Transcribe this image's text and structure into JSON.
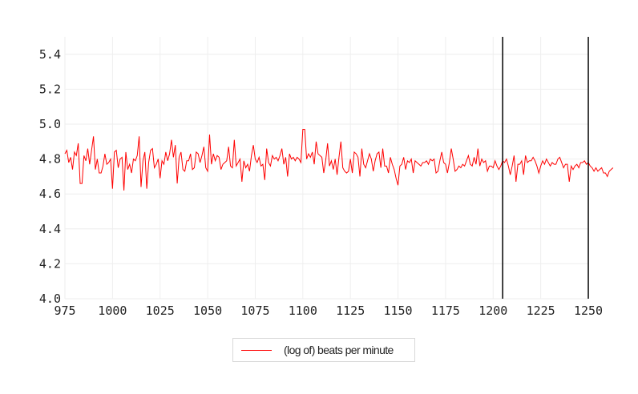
{
  "chart_data": {
    "type": "line",
    "title": "",
    "xlabel": "",
    "ylabel": "",
    "xlim": [
      975,
      1250
    ],
    "ylim": [
      4.0,
      5.5
    ],
    "x_ticks": [
      "975",
      "1000",
      "1025",
      "1050",
      "1075",
      "1100",
      "1125",
      "1150",
      "1175",
      "1200",
      "1225",
      "1250"
    ],
    "y_ticks": [
      "4.0",
      "4.2",
      "4.4",
      "4.6",
      "4.8",
      "5.0",
      "5.2",
      "5.4"
    ],
    "grid": true,
    "legend_position": "bottom-center",
    "series": [
      {
        "name": "(log of) beats per minute",
        "color": "#ff0000",
        "x_start": 975,
        "x_step": 1,
        "values": [
          4.83,
          4.85,
          4.78,
          4.81,
          4.74,
          4.84,
          4.82,
          4.89,
          4.66,
          4.66,
          4.82,
          4.79,
          4.86,
          4.77,
          4.85,
          4.93,
          4.74,
          4.8,
          4.72,
          4.72,
          4.76,
          4.83,
          4.77,
          4.78,
          4.8,
          4.63,
          4.84,
          4.85,
          4.75,
          4.8,
          4.81,
          4.62,
          4.84,
          4.74,
          4.77,
          4.72,
          4.8,
          4.79,
          4.82,
          4.93,
          4.64,
          4.79,
          4.84,
          4.63,
          4.78,
          4.85,
          4.86,
          4.75,
          4.77,
          4.8,
          4.69,
          4.79,
          4.77,
          4.84,
          4.79,
          4.83,
          4.91,
          4.81,
          4.88,
          4.66,
          4.81,
          4.84,
          4.74,
          4.73,
          4.79,
          4.79,
          4.83,
          4.74,
          4.75,
          4.84,
          4.83,
          4.78,
          4.82,
          4.87,
          4.75,
          4.73,
          4.94,
          4.77,
          4.83,
          4.79,
          4.82,
          4.81,
          4.74,
          4.77,
          4.78,
          4.79,
          4.87,
          4.76,
          4.75,
          4.91,
          4.76,
          4.78,
          4.8,
          4.67,
          4.79,
          4.75,
          4.77,
          4.73,
          4.82,
          4.88,
          4.8,
          4.78,
          4.81,
          4.76,
          4.77,
          4.68,
          4.86,
          4.78,
          4.76,
          4.82,
          4.8,
          4.81,
          4.79,
          4.82,
          4.86,
          4.77,
          4.81,
          4.7,
          4.83,
          4.8,
          4.81,
          4.79,
          4.81,
          4.8,
          4.78,
          4.97,
          4.97,
          4.8,
          4.83,
          4.81,
          4.84,
          4.77,
          4.9,
          4.83,
          4.82,
          4.81,
          4.72,
          4.79,
          4.89,
          4.76,
          4.79,
          4.74,
          4.8,
          4.71,
          4.81,
          4.9,
          4.75,
          4.73,
          4.72,
          4.73,
          4.8,
          4.72,
          4.84,
          4.83,
          4.81,
          4.7,
          4.86,
          4.77,
          4.75,
          4.79,
          4.83,
          4.8,
          4.73,
          4.79,
          4.83,
          4.84,
          4.75,
          4.86,
          4.76,
          4.76,
          4.72,
          4.81,
          4.77,
          4.74,
          4.69,
          4.65,
          4.76,
          4.77,
          4.81,
          4.74,
          4.79,
          4.78,
          4.8,
          4.72,
          4.79,
          4.78,
          4.77,
          4.76,
          4.78,
          4.78,
          4.79,
          4.77,
          4.8,
          4.79,
          4.8,
          4.72,
          4.73,
          4.79,
          4.84,
          4.78,
          4.77,
          4.72,
          4.78,
          4.86,
          4.8,
          4.73,
          4.74,
          4.76,
          4.75,
          4.77,
          4.76,
          4.79,
          4.82,
          4.77,
          4.76,
          4.81,
          4.77,
          4.86,
          4.76,
          4.8,
          4.78,
          4.79,
          4.73,
          4.76,
          4.76,
          4.75,
          4.79,
          4.76,
          4.74,
          4.76,
          4.79,
          4.78,
          4.8,
          4.76,
          4.71,
          4.76,
          4.82,
          4.67,
          4.77,
          4.77,
          4.79,
          4.71,
          4.82,
          4.78,
          4.79,
          4.79,
          4.81,
          4.79,
          4.76,
          4.72,
          4.76,
          4.79,
          4.77,
          4.8,
          4.78,
          4.76,
          4.78,
          4.77,
          4.77,
          4.8,
          4.81,
          4.78,
          4.75,
          4.77,
          4.77,
          4.67,
          4.76,
          4.74,
          4.76,
          4.77,
          4.75,
          4.78,
          4.78,
          4.79,
          4.77,
          4.78,
          4.76,
          4.75,
          4.73,
          4.75,
          4.73,
          4.74,
          4.75,
          4.72,
          4.72,
          4.7,
          4.73,
          4.74,
          4.75
        ]
      }
    ],
    "vertical_lines": [
      {
        "x": 1205,
        "color": "#000000"
      },
      {
        "x": 1250,
        "color": "#000000"
      }
    ]
  }
}
